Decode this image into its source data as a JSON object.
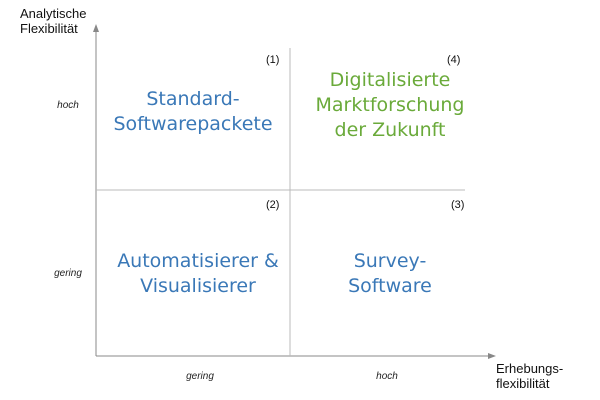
{
  "y_axis": {
    "title_lines": [
      "Analytische",
      "Flexibilität"
    ],
    "ticks": [
      "hoch",
      "gering"
    ]
  },
  "x_axis": {
    "title_lines": [
      "Erhebungs-",
      "flexibilität"
    ],
    "ticks": [
      "gering",
      "hoch"
    ]
  },
  "quadrants": [
    {
      "number": "(1)",
      "lines": [
        "Standard-",
        "Softwarepackete"
      ],
      "color": "#3a78b7"
    },
    {
      "number": "(4)",
      "lines": [
        "Digitalisierte",
        "Marktforschung",
        "der Zukunft"
      ],
      "color": "#6aaa3a"
    },
    {
      "number": "(2)",
      "lines": [
        "Automatisierer &",
        "Visualisierer"
      ],
      "color": "#3a78b7"
    },
    {
      "number": "(3)",
      "lines": [
        "Survey-",
        "Software"
      ],
      "color": "#3a78b7"
    }
  ]
}
